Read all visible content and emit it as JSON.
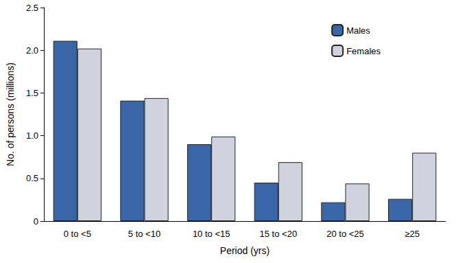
{
  "chart_data": {
    "type": "bar",
    "categories": [
      "0 to <5",
      "5 to <10",
      "10 to <15",
      "15 to <20",
      "20 to <25",
      "≥25"
    ],
    "series": [
      {
        "name": "Males",
        "color": "#3a66a8",
        "values": [
          2.11,
          1.41,
          0.9,
          0.45,
          0.22,
          0.26
        ]
      },
      {
        "name": "Females",
        "color": "#d0d2dd",
        "values": [
          2.02,
          1.44,
          0.99,
          0.69,
          0.44,
          0.8
        ]
      }
    ],
    "x_label": "Period (yrs)",
    "y_label": "No. of persons (millions)",
    "ylim": [
      0,
      2.5
    ],
    "yticks": [
      0,
      0.5,
      {
        "value": 1,
        "label": "1.0"
      },
      1.5,
      {
        "value": 2,
        "label": "2.0"
      },
      2.5
    ],
    "legend": "top-right",
    "grid": false
  }
}
